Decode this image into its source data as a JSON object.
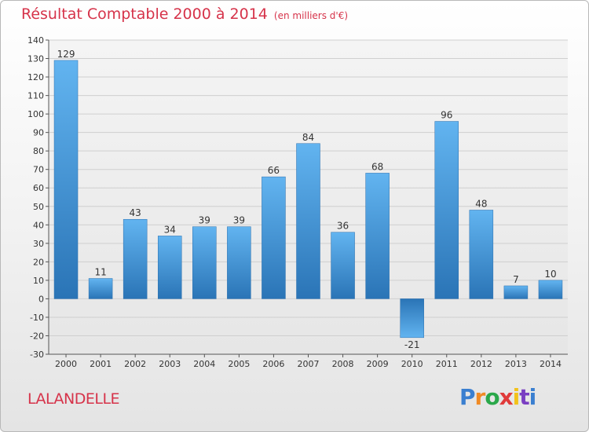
{
  "header": {
    "title": "Résultat Comptable 2000 à 2014",
    "unit": "(en milliers d'€)"
  },
  "commune": "LALANDELLE",
  "logo": "Proxiti",
  "colors": {
    "title": "#d6334a",
    "bar_light": "#5fb1ef",
    "bar_dark": "#2a75b8",
    "grid": "#c9c9c9"
  },
  "chart_data": {
    "type": "bar",
    "categories": [
      "2000",
      "2001",
      "2002",
      "2003",
      "2004",
      "2005",
      "2006",
      "2007",
      "2008",
      "2009",
      "2010",
      "2011",
      "2012",
      "2013",
      "2014"
    ],
    "values": [
      129,
      11,
      43,
      34,
      39,
      39,
      66,
      84,
      36,
      68,
      -21,
      96,
      48,
      7,
      10
    ],
    "title": "Résultat Comptable 2000 à 2014",
    "subtitle": "(en milliers d'€)",
    "ylim": [
      -30,
      140
    ],
    "yticks": [
      140,
      130,
      120,
      110,
      100,
      90,
      80,
      70,
      60,
      50,
      40,
      30,
      20,
      10,
      0,
      -10,
      -20,
      -30
    ],
    "grid": true,
    "legend": "none"
  }
}
